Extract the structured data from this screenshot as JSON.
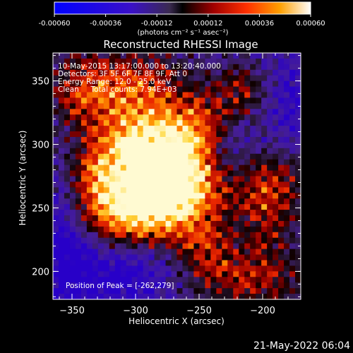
{
  "chart_data": {
    "type": "heatmap",
    "title": "Reconstructed RHESSI Image",
    "xlabel": "Heliocentric X (arcsec)",
    "ylabel": "Heliocentric Y (arcsec)",
    "xlim": [
      -365,
      -170
    ],
    "ylim": [
      178,
      372
    ],
    "xticks": [
      -350,
      -300,
      -250,
      -200
    ],
    "yticks": [
      200,
      250,
      300,
      350
    ],
    "colorbar": {
      "ticks": [
        "-0.00060",
        "-0.00036",
        "-0.00012",
        "0.00012",
        "0.00036",
        "0.00060"
      ],
      "range": [
        -0.0006,
        0.0006
      ],
      "units": "(photons cm⁻² s⁻¹ asec⁻²)"
    },
    "info_lines": [
      "10-May-2015 13:17:00.000 to 13:20:40.000",
      "Detectors: 3F 5F 6F 7F 8F 9F, Att 0",
      "Energy Range: 12.0 - 25.0 keV",
      "Clean     Total counts: 7.94E+03"
    ],
    "peak_label": "Position of Peak = [-262,279]",
    "peak": [
      -262,
      279
    ],
    "blobs": [
      {
        "x": -262,
        "y": 279,
        "sx": 28,
        "sy": 24,
        "a": 1.0
      },
      {
        "x": -300,
        "y": 300,
        "sx": 22,
        "sy": 20,
        "a": 0.8
      },
      {
        "x": -318,
        "y": 248,
        "sx": 30,
        "sy": 22,
        "a": 0.9
      },
      {
        "x": -275,
        "y": 250,
        "sx": 24,
        "sy": 22,
        "a": 0.6
      },
      {
        "x": -340,
        "y": 340,
        "sx": 22,
        "sy": 22,
        "a": 0.55
      },
      {
        "x": -295,
        "y": 345,
        "sx": 26,
        "sy": 20,
        "a": 0.55
      },
      {
        "x": -250,
        "y": 315,
        "sx": 20,
        "sy": 18,
        "a": 0.6
      },
      {
        "x": -195,
        "y": 265,
        "sx": 18,
        "sy": 30,
        "a": 0.65
      },
      {
        "x": -215,
        "y": 340,
        "sx": 18,
        "sy": 16,
        "a": 0.45
      },
      {
        "x": -210,
        "y": 195,
        "sx": 30,
        "sy": 18,
        "a": 0.5
      },
      {
        "x": -245,
        "y": 215,
        "sx": 16,
        "sy": 18,
        "a": 0.35
      },
      {
        "x": -335,
        "y": 280,
        "sx": 16,
        "sy": 16,
        "a": 0.45
      }
    ],
    "dark_regions": [
      {
        "x": -225,
        "y": 300,
        "sx": 22,
        "sy": 22,
        "a": 0.7
      },
      {
        "x": -310,
        "y": 200,
        "sx": 28,
        "sy": 20,
        "a": 0.7
      },
      {
        "x": -355,
        "y": 230,
        "sx": 16,
        "sy": 40,
        "a": 0.8
      },
      {
        "x": -180,
        "y": 330,
        "sx": 14,
        "sy": 28,
        "a": 0.55
      }
    ]
  },
  "timestamp": "21-May-2022 06:04"
}
